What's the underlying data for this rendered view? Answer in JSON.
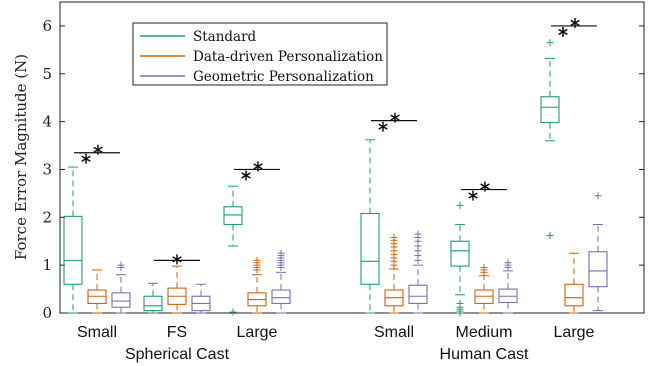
{
  "chart_data": {
    "type": "box",
    "title": "",
    "ylabel": "Force Error Magnitude (N)",
    "ylim": [
      0,
      6.5
    ],
    "yticks": [
      0,
      1,
      2,
      3,
      4,
      5,
      6
    ],
    "ytick_labels": [
      "0",
      "1",
      "2",
      "3",
      "4",
      "5",
      "6"
    ],
    "grid": false,
    "legend_position": "top-left",
    "groups": [
      {
        "label": "Spherical Cast",
        "categories": [
          "Small",
          "FS",
          "Large"
        ]
      },
      {
        "label": "Human Cast",
        "categories": [
          "Small",
          "Medium",
          "Large"
        ]
      }
    ],
    "categories": [
      "Small",
      "FS",
      "Large",
      "Small",
      "Medium",
      "Large"
    ],
    "significance_marker": "*",
    "significance": [
      {
        "category": 0,
        "y": 3.35,
        "stars": 2
      },
      {
        "category": 1,
        "y": 1.1,
        "stars": 1
      },
      {
        "category": 2,
        "y": 3.0,
        "stars": 2
      },
      {
        "category": 3,
        "y": 4.02,
        "stars": 2
      },
      {
        "category": 4,
        "y": 2.58,
        "stars": 2
      },
      {
        "category": 5,
        "y": 6.0,
        "stars": 2
      }
    ],
    "series": [
      {
        "name": "Standard",
        "color": "#1a9e77",
        "boxes": [
          {
            "whisker_low": 0.0,
            "q1": 0.6,
            "median": 1.1,
            "q3": 2.02,
            "whisker_high": 3.05,
            "outliers": []
          },
          {
            "whisker_low": 0.0,
            "q1": 0.05,
            "median": 0.15,
            "q3": 0.35,
            "whisker_high": 0.62,
            "outliers": []
          },
          {
            "whisker_low": 1.4,
            "q1": 1.85,
            "median": 2.05,
            "q3": 2.22,
            "whisker_high": 2.65,
            "outliers": [
              0.02
            ]
          },
          {
            "whisker_low": 0.0,
            "q1": 0.6,
            "median": 1.08,
            "q3": 2.08,
            "whisker_high": 3.62,
            "outliers": []
          },
          {
            "whisker_low": 0.38,
            "q1": 0.98,
            "median": 1.3,
            "q3": 1.5,
            "whisker_high": 1.85,
            "outliers": [
              2.25,
              0.2,
              0.12,
              0.08,
              0.04,
              0.0
            ]
          },
          {
            "whisker_low": 3.6,
            "q1": 3.98,
            "median": 4.3,
            "q3": 4.52,
            "whisker_high": 5.32,
            "outliers": [
              5.65,
              1.62
            ]
          }
        ]
      },
      {
        "name": "Data-driven Personalization",
        "color": "#d95f02",
        "boxes": [
          {
            "whisker_low": 0.0,
            "q1": 0.2,
            "median": 0.35,
            "q3": 0.48,
            "whisker_high": 0.9,
            "outliers": []
          },
          {
            "whisker_low": 0.0,
            "q1": 0.18,
            "median": 0.35,
            "q3": 0.52,
            "whisker_high": 0.98,
            "outliers": []
          },
          {
            "whisker_low": 0.0,
            "q1": 0.15,
            "median": 0.28,
            "q3": 0.42,
            "whisker_high": 0.8,
            "outliers": [
              0.9,
              0.95,
              1.0,
              1.05,
              1.1
            ]
          },
          {
            "whisker_low": 0.0,
            "q1": 0.15,
            "median": 0.32,
            "q3": 0.48,
            "whisker_high": 0.92,
            "outliers": [
              1.0,
              1.08,
              1.15,
              1.22,
              1.3,
              1.38,
              1.45,
              1.52,
              1.58
            ]
          },
          {
            "whisker_low": 0.0,
            "q1": 0.2,
            "median": 0.35,
            "q3": 0.48,
            "whisker_high": 0.78,
            "outliers": [
              0.85,
              0.9,
              0.95
            ]
          },
          {
            "whisker_low": 0.0,
            "q1": 0.15,
            "median": 0.32,
            "q3": 0.6,
            "whisker_high": 1.25,
            "outliers": []
          }
        ]
      },
      {
        "name": "Geometric Personalization",
        "color": "#7570b3",
        "boxes": [
          {
            "whisker_low": 0.0,
            "q1": 0.12,
            "median": 0.25,
            "q3": 0.42,
            "whisker_high": 0.8,
            "outliers": [
              0.95,
              1.0
            ]
          },
          {
            "whisker_low": 0.0,
            "q1": 0.05,
            "median": 0.2,
            "q3": 0.35,
            "whisker_high": 0.6,
            "outliers": []
          },
          {
            "whisker_low": 0.0,
            "q1": 0.2,
            "median": 0.32,
            "q3": 0.48,
            "whisker_high": 0.85,
            "outliers": [
              0.95,
              1.0,
              1.05,
              1.1,
              1.15,
              1.2,
              1.25
            ]
          },
          {
            "whisker_low": 0.0,
            "q1": 0.2,
            "median": 0.35,
            "q3": 0.58,
            "whisker_high": 1.0,
            "outliers": [
              1.1,
              1.2,
              1.3,
              1.4,
              1.5,
              1.58,
              1.65
            ]
          },
          {
            "whisker_low": 0.0,
            "q1": 0.22,
            "median": 0.35,
            "q3": 0.5,
            "whisker_high": 0.88,
            "outliers": [
              0.95,
              1.0,
              1.05
            ]
          },
          {
            "whisker_low": 0.05,
            "q1": 0.55,
            "median": 0.88,
            "q3": 1.28,
            "whisker_high": 1.85,
            "outliers": [
              2.45
            ]
          }
        ]
      }
    ]
  }
}
